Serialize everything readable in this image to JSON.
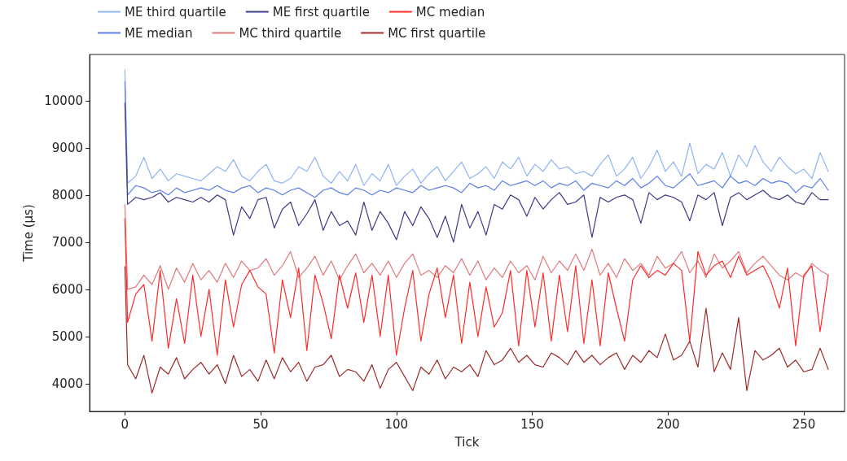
{
  "chart_data": {
    "type": "line",
    "xlabel": "Tick",
    "ylabel": "Time (µs)",
    "x": [
      0,
      1,
      4,
      7,
      10,
      13,
      16,
      19,
      22,
      25,
      28,
      31,
      34,
      37,
      40,
      43,
      46,
      49,
      52,
      55,
      58,
      61,
      64,
      67,
      70,
      73,
      76,
      79,
      82,
      85,
      88,
      91,
      94,
      97,
      100,
      103,
      106,
      109,
      112,
      115,
      118,
      121,
      124,
      127,
      130,
      133,
      136,
      139,
      142,
      145,
      148,
      151,
      154,
      157,
      160,
      163,
      166,
      169,
      172,
      175,
      178,
      181,
      184,
      187,
      190,
      193,
      196,
      199,
      202,
      205,
      208,
      211,
      214,
      217,
      220,
      223,
      226,
      229,
      232,
      235,
      238,
      241,
      244,
      247,
      250,
      253,
      256,
      259
    ],
    "xlim": [
      -13,
      265
    ],
    "xticks": [
      0,
      50,
      100,
      150,
      200,
      250
    ],
    "ylim": [
      3410,
      10980
    ],
    "yticks": [
      4000,
      5000,
      6000,
      7000,
      8000,
      9000,
      10000
    ],
    "grid": false,
    "legend": "top",
    "marker": "none",
    "line_style": "solid",
    "series": [
      {
        "name": "ME third quartile",
        "color": "#8fb4f5",
        "values": [
          10650,
          8250,
          8400,
          8800,
          8350,
          8550,
          8300,
          8450,
          8400,
          8350,
          8300,
          8450,
          8600,
          8500,
          8750,
          8400,
          8300,
          8500,
          8650,
          8300,
          8250,
          8350,
          8600,
          8500,
          8800,
          8400,
          8250,
          8500,
          8300,
          8650,
          8200,
          8450,
          8300,
          8650,
          8200,
          8400,
          8550,
          8250,
          8450,
          8600,
          8300,
          8500,
          8700,
          8350,
          8450,
          8600,
          8350,
          8700,
          8550,
          8800,
          8400,
          8650,
          8500,
          8750,
          8550,
          8600,
          8450,
          8500,
          8400,
          8650,
          8850,
          8400,
          8550,
          8800,
          8350,
          8600,
          8950,
          8500,
          8700,
          8400,
          9100,
          8450,
          8650,
          8550,
          8900,
          8400,
          8850,
          8600,
          9050,
          8700,
          8500,
          8800,
          8600,
          8450,
          8550,
          8350,
          8900,
          8500
        ]
      },
      {
        "name": "ME median",
        "color": "#5b7fe6",
        "values": [
          10400,
          8000,
          8200,
          8150,
          8050,
          8100,
          8000,
          8150,
          8050,
          8100,
          8150,
          8100,
          8200,
          8100,
          8050,
          8150,
          8200,
          8050,
          8150,
          8100,
          8000,
          8100,
          8150,
          8050,
          7950,
          8100,
          8150,
          8050,
          8000,
          8150,
          8100,
          8000,
          8100,
          8050,
          8150,
          8100,
          8050,
          8200,
          8100,
          8150,
          8200,
          8150,
          8050,
          8250,
          8150,
          8200,
          8100,
          8300,
          8200,
          8250,
          8300,
          8200,
          8300,
          8150,
          8250,
          8200,
          8300,
          8100,
          8250,
          8200,
          8150,
          8300,
          8200,
          8350,
          8150,
          8250,
          8400,
          8200,
          8150,
          8300,
          8450,
          8200,
          8250,
          8300,
          8150,
          8400,
          8250,
          8300,
          8200,
          8350,
          8250,
          8300,
          8250,
          8050,
          8200,
          8150,
          8350,
          8100
        ]
      },
      {
        "name": "ME first quartile",
        "color": "#3a3a85",
        "values": [
          9950,
          7800,
          7950,
          7900,
          7950,
          8050,
          7850,
          7950,
          7900,
          7850,
          7950,
          7850,
          8000,
          7900,
          7150,
          7750,
          7500,
          7900,
          7950,
          7300,
          7700,
          7850,
          7350,
          7600,
          7900,
          7250,
          7650,
          7350,
          7450,
          7150,
          7850,
          7250,
          7650,
          7400,
          7050,
          7650,
          7350,
          7750,
          7500,
          7100,
          7550,
          7000,
          7800,
          7300,
          7650,
          7150,
          7800,
          7700,
          8000,
          7900,
          7550,
          7950,
          7700,
          7900,
          8050,
          7800,
          7850,
          8000,
          7100,
          7950,
          7850,
          7950,
          8000,
          7900,
          7400,
          8050,
          7900,
          8000,
          7950,
          7850,
          7450,
          8000,
          7900,
          8050,
          7350,
          7950,
          8050,
          7900,
          8000,
          8100,
          7950,
          7900,
          8000,
          7850,
          7800,
          8050,
          7900,
          7900
        ]
      },
      {
        "name": "MC third quartile",
        "color": "#e07a7a",
        "values": [
          7800,
          6000,
          6050,
          6300,
          6100,
          6500,
          6000,
          6450,
          6150,
          6550,
          6200,
          6400,
          6150,
          6550,
          6250,
          6600,
          6400,
          6450,
          6650,
          6300,
          6500,
          6800,
          6250,
          6450,
          6700,
          6300,
          6600,
          6200,
          6500,
          6750,
          6350,
          6550,
          6300,
          6600,
          6250,
          6550,
          6750,
          6300,
          6400,
          6250,
          6500,
          6350,
          6650,
          6300,
          6600,
          6200,
          6450,
          6250,
          6600,
          6350,
          6500,
          6200,
          6700,
          6350,
          6600,
          6400,
          6750,
          6400,
          6850,
          6300,
          6550,
          6250,
          6650,
          6400,
          6550,
          6300,
          6700,
          6450,
          6550,
          6800,
          6350,
          6600,
          6250,
          6750,
          6450,
          6600,
          6800,
          6350,
          6550,
          6700,
          6500,
          6300,
          6200,
          6350,
          6250,
          6550,
          6400,
          6300
        ]
      },
      {
        "name": "MC median",
        "color": "#ff2a2a",
        "values": [
          7500,
          5300,
          5900,
          6100,
          4900,
          6400,
          4750,
          5800,
          4850,
          6300,
          5000,
          6000,
          4600,
          6200,
          5200,
          6100,
          6400,
          6050,
          5900,
          4650,
          6200,
          5400,
          6450,
          4700,
          6300,
          5700,
          4950,
          6300,
          5600,
          6350,
          5300,
          6300,
          5000,
          6300,
          4600,
          5600,
          6400,
          4900,
          5900,
          6450,
          5400,
          6300,
          4850,
          6150,
          5000,
          6050,
          5200,
          5500,
          6400,
          4800,
          6400,
          5200,
          6350,
          4900,
          6300,
          5100,
          6500,
          4850,
          6200,
          4800,
          6350,
          5600,
          4900,
          6200,
          6500,
          6250,
          6400,
          6300,
          6550,
          6400,
          4900,
          6800,
          6300,
          6500,
          6600,
          6250,
          6700,
          6300,
          6400,
          6500,
          6150,
          5600,
          6450,
          4800,
          6300,
          6500,
          5100,
          6300
        ]
      },
      {
        "name": "MC first quartile",
        "color": "#9e2a2a",
        "values": [
          6480,
          4400,
          4100,
          4600,
          3800,
          4350,
          4200,
          4550,
          4100,
          4300,
          4450,
          4200,
          4400,
          4000,
          4600,
          4150,
          4300,
          4050,
          4500,
          4100,
          4550,
          4250,
          4450,
          4050,
          4350,
          4400,
          4600,
          4150,
          4300,
          4250,
          4050,
          4400,
          3900,
          4300,
          4450,
          4150,
          3850,
          4350,
          4200,
          4500,
          4100,
          4350,
          4250,
          4400,
          4150,
          4700,
          4400,
          4500,
          4750,
          4450,
          4600,
          4400,
          4350,
          4650,
          4550,
          4400,
          4700,
          4450,
          4600,
          4400,
          4550,
          4650,
          4300,
          4600,
          4450,
          4700,
          4550,
          5050,
          4500,
          4600,
          4900,
          4350,
          5600,
          4250,
          4650,
          4300,
          5400,
          3850,
          4700,
          4500,
          4600,
          4750,
          4350,
          4500,
          4250,
          4300,
          4750,
          4300
        ]
      }
    ]
  }
}
